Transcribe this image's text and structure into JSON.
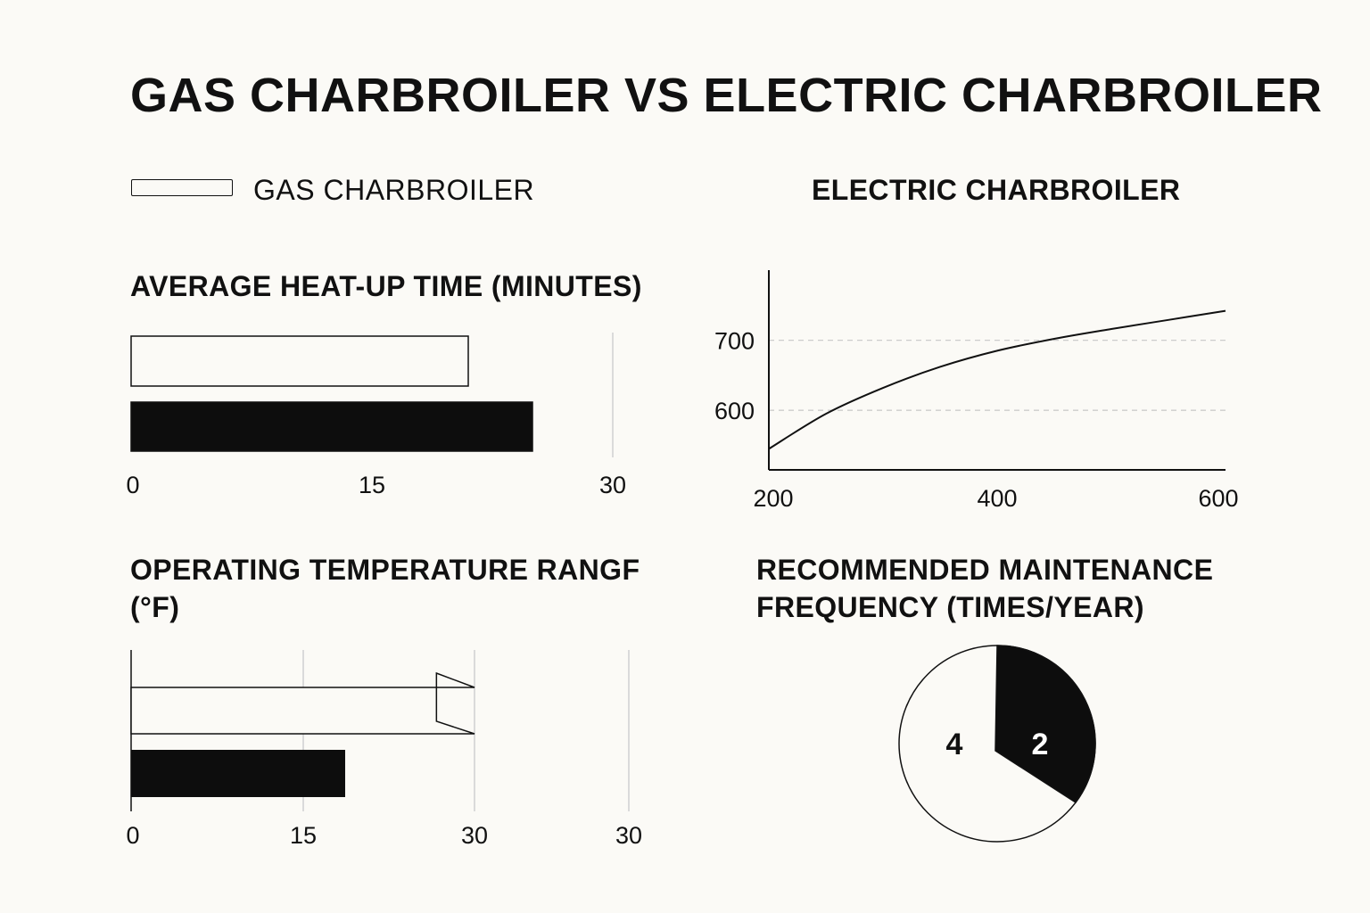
{
  "title": "GAS CHARBROILER VS ELECTRIC CHARBROILER",
  "legend": {
    "gas_label": "GAS CHARBROILER",
    "electric_label": "ELECTRIC CHARBROILER"
  },
  "colors": {
    "gas": "#fbfaf6",
    "electric": "#0d0d0d",
    "outline": "#111111",
    "grid": "#cccccc"
  },
  "chart_data": [
    {
      "type": "bar",
      "title": "AVERAGE HEAT-UP TIME (MINUTES)",
      "orientation": "horizontal",
      "series": [
        {
          "name": "GAS CHARBROILER",
          "values": [
            21
          ]
        },
        {
          "name": "ELECTRIC CHARBROILER",
          "values": [
            25
          ]
        }
      ],
      "xlim": [
        0,
        30
      ],
      "xticks": [
        "0",
        "15",
        "30"
      ]
    },
    {
      "type": "line",
      "title": "ELECTRIC CHARBROILER",
      "x": [
        200,
        250,
        300,
        350,
        400,
        450,
        500,
        550,
        600
      ],
      "y": [
        545,
        595,
        632,
        662,
        685,
        702,
        716,
        729,
        742
      ],
      "xlim": [
        200,
        600
      ],
      "ylim": [
        515,
        800
      ],
      "xticks": [
        "200",
        "400",
        "600"
      ],
      "yticks": [
        {
          "value": 700,
          "label": "700"
        },
        {
          "value": 600,
          "label": "600"
        }
      ],
      "grid": "dashed horizontal"
    },
    {
      "type": "bar",
      "title_line1": "OPERATING TEMPERATURE RANGF",
      "title_line2": "(°F)",
      "orientation": "horizontal",
      "series": [
        {
          "name": "GAS CHARBROILER",
          "values": [
            28.5
          ]
        },
        {
          "name": "ELECTRIC CHARBROILER",
          "values": [
            18.7
          ]
        }
      ],
      "xticks": [
        "0",
        "15",
        "30",
        "30"
      ]
    },
    {
      "type": "pie",
      "title_line1": "RECOMMENDED MAINTENANCE",
      "title_line2": "FREQUENCY (TIMES/YEAR)",
      "slices": [
        {
          "label": "4",
          "value": 4,
          "series": "GAS CHARBROILER"
        },
        {
          "label": "2",
          "value": 2,
          "series": "ELECTRIC CHARBROILER"
        }
      ]
    }
  ]
}
